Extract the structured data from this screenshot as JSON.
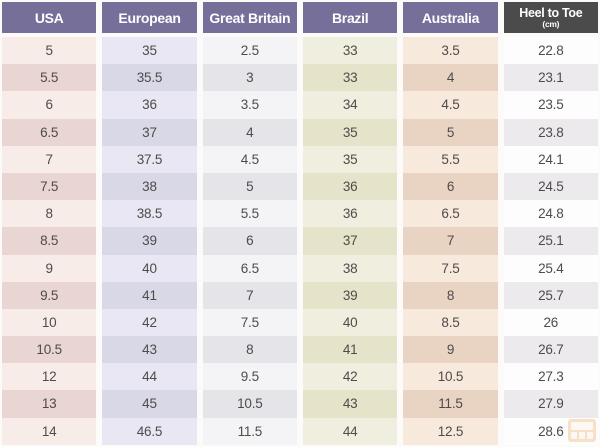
{
  "chart_data": {
    "type": "table",
    "columns": [
      {
        "label": "USA",
        "sublabel": "",
        "header_bg": "#756f9a",
        "row_odd": "#f8ece9",
        "row_even": "#e9d6d3"
      },
      {
        "label": "European",
        "sublabel": "",
        "header_bg": "#756f9a",
        "row_odd": "#e8e7f3",
        "row_even": "#d9d8e7"
      },
      {
        "label": "Great Britain",
        "sublabel": "",
        "header_bg": "#756f9a",
        "row_odd": "#f4f4f7",
        "row_even": "#e4e4e9"
      },
      {
        "label": "Brazil",
        "sublabel": "",
        "header_bg": "#756f9a",
        "row_odd": "#f0efdf",
        "row_even": "#e5e4ca"
      },
      {
        "label": "Australia",
        "sublabel": "",
        "header_bg": "#756f9a",
        "row_odd": "#f7e9db",
        "row_even": "#e9d3c3"
      },
      {
        "label": "Heel to Toe",
        "sublabel": "(cm)",
        "header_bg": "#4b4b4b",
        "row_odd": "#fdfdfd",
        "row_even": "#eceaec"
      }
    ],
    "rows": [
      [
        "5",
        "35",
        "2.5",
        "33",
        "3.5",
        "22.8"
      ],
      [
        "5.5",
        "35.5",
        "3",
        "33",
        "4",
        "23.1"
      ],
      [
        "6",
        "36",
        "3.5",
        "34",
        "4.5",
        "23.5"
      ],
      [
        "6.5",
        "37",
        "4",
        "35",
        "5",
        "23.8"
      ],
      [
        "7",
        "37.5",
        "4.5",
        "35",
        "5.5",
        "24.1"
      ],
      [
        "7.5",
        "38",
        "5",
        "36",
        "6",
        "24.5"
      ],
      [
        "8",
        "38.5",
        "5.5",
        "36",
        "6.5",
        "24.8"
      ],
      [
        "8.5",
        "39",
        "6",
        "37",
        "7",
        "25.1"
      ],
      [
        "9",
        "40",
        "6.5",
        "38",
        "7.5",
        "25.4"
      ],
      [
        "9.5",
        "41",
        "7",
        "39",
        "8",
        "25.7"
      ],
      [
        "10",
        "42",
        "7.5",
        "40",
        "8.5",
        "26"
      ],
      [
        "10.5",
        "43",
        "8",
        "41",
        "9",
        "26.7"
      ],
      [
        "12",
        "44",
        "9.5",
        "42",
        "10.5",
        "27.3"
      ],
      [
        "13",
        "45",
        "10.5",
        "43",
        "11.5",
        "27.9"
      ],
      [
        "14",
        "46.5",
        "11.5",
        "44",
        "12.5",
        "28.6"
      ]
    ]
  },
  "colors": {
    "header_purple": "#756f9a",
    "header_dark": "#4b4b4b",
    "header_text": "#ffffff",
    "cell_text": "#4f4b4b",
    "background": "#fcfbfa",
    "watermark_orange": "#eec089"
  },
  "icons": {
    "watermark": "grid-logo-icon"
  }
}
